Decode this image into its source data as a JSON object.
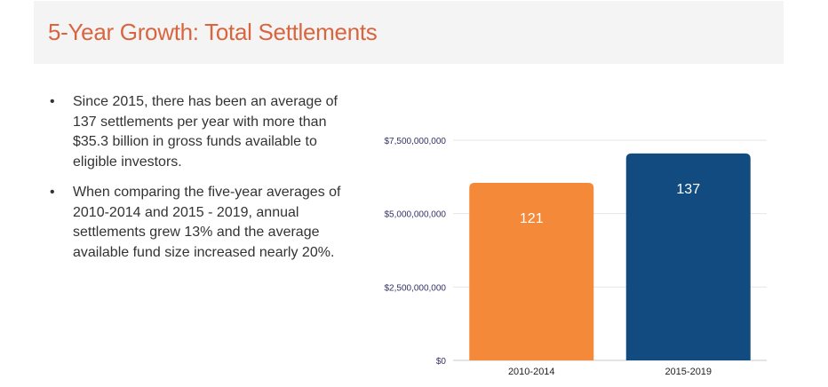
{
  "page": {
    "title": "5-Year Growth: Total Settlements"
  },
  "bullets": [
    {
      "text": "Since 2015, there has been an average of 137 settlements per year with more than $35.3 billion in gross funds available to eligible investors."
    },
    {
      "text": "When comparing the five-year averages of 2010-2014 and 2015 - 2019, annual settlements grew 13% and the average available fund size increased nearly 20%."
    }
  ],
  "chart_data": {
    "type": "bar",
    "categories": [
      "2010-2014",
      "2015-2019"
    ],
    "values": [
      6050000000,
      7050000000
    ],
    "data_labels": [
      "121",
      "137"
    ],
    "ylim": [
      0,
      7500000000
    ],
    "yticks": [
      0,
      2500000000,
      5000000000,
      7500000000
    ],
    "ytick_labels": [
      "$0",
      "$2,500,000,000",
      "$5,000,000,000",
      "$7,500,000,000"
    ],
    "colors": [
      "#f5893a",
      "#124b7f"
    ],
    "grid": true,
    "legend": "none",
    "title": "",
    "xlabel": "",
    "ylabel": ""
  }
}
